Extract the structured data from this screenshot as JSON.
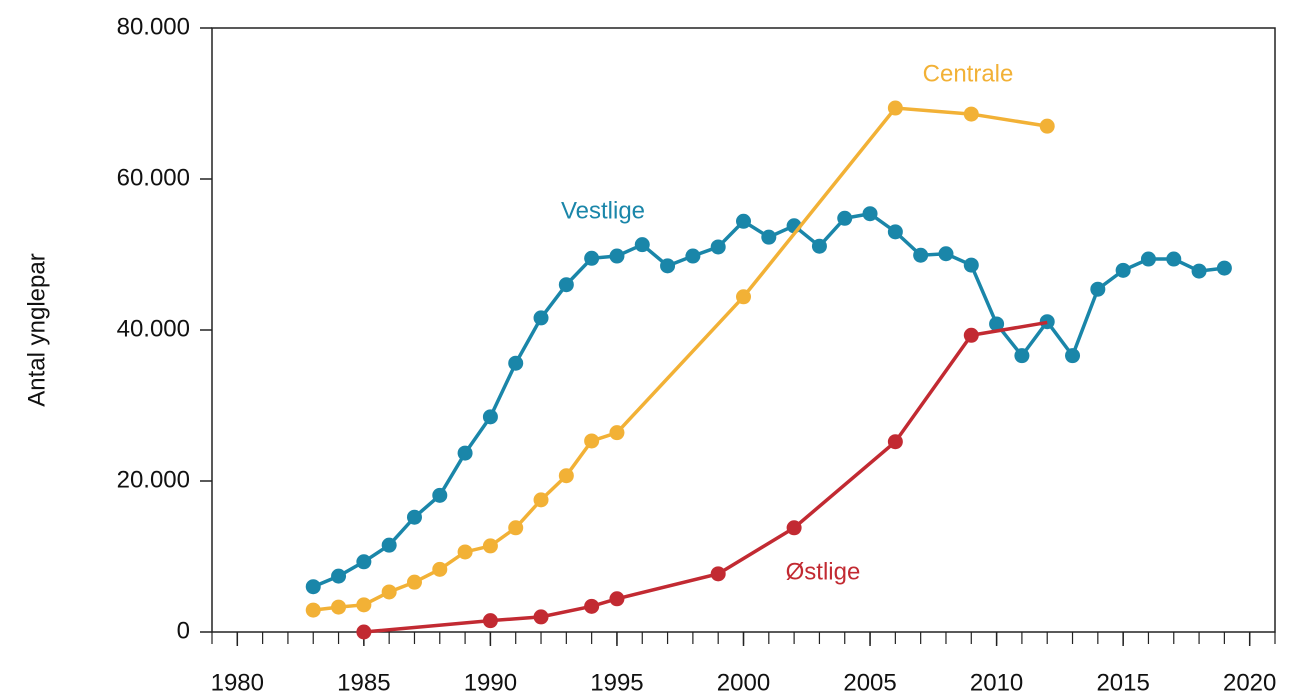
{
  "chart_data": {
    "type": "line",
    "y_label": "Antal ynglepar",
    "xlim": [
      1979,
      2021
    ],
    "xticks": [
      1980,
      1985,
      1990,
      1995,
      2000,
      2005,
      2010,
      2015,
      2020
    ],
    "ylim": [
      0,
      80000
    ],
    "yticks": [
      0,
      {
        "value": 20000,
        "label": "20.000"
      },
      {
        "value": 40000,
        "label": "40.000"
      },
      {
        "value": 60000,
        "label": "60.000"
      },
      {
        "value": 80000,
        "label": "80.000"
      }
    ],
    "series": [
      {
        "name": "Vestlige",
        "color": "#1a86a9",
        "x": [
          1983,
          1984,
          1985,
          1986,
          1987,
          1988,
          1989,
          1990,
          1991,
          1992,
          1993,
          1994,
          1995,
          1996,
          1997,
          1998,
          1999,
          2000,
          2001,
          2002,
          2003,
          2004,
          2005,
          2006,
          2007,
          2008,
          2009,
          2010,
          2011,
          2012,
          2013,
          2014,
          2015,
          2016,
          2017,
          2018,
          2019
        ],
        "values": [
          6000,
          7400,
          9300,
          11500,
          15200,
          18100,
          23700,
          28500,
          35600,
          41600,
          46000,
          49500,
          49800,
          51300,
          48500,
          49800,
          51000,
          54400,
          52300,
          53800,
          51100,
          54800,
          55400,
          53000,
          49900,
          50100,
          48600,
          40800,
          36600,
          41100,
          36600,
          45400,
          47900,
          49400,
          49400,
          47800,
          48200
        ]
      },
      {
        "name": "Centrale",
        "color": "#f2b136",
        "x": [
          1983,
          1984,
          1985,
          1986,
          1987,
          1988,
          1989,
          1990,
          1991,
          1992,
          1993,
          1994,
          1995,
          2000,
          2006,
          2009,
          2012
        ],
        "values": [
          2900,
          3300,
          3600,
          5300,
          6600,
          8300,
          10600,
          11400,
          13800,
          17500,
          20700,
          25300,
          26400,
          44400,
          69400,
          68600,
          67000
        ]
      },
      {
        "name": "Østlige",
        "color": "#c22a32",
        "x": [
          1985,
          1990,
          1992,
          1994,
          1995,
          1999,
          2002,
          2006,
          2009,
          2012
        ],
        "values": [
          0,
          1500,
          2000,
          3400,
          4400,
          7700,
          13800,
          25200,
          39300,
          41000
        ]
      }
    ]
  }
}
